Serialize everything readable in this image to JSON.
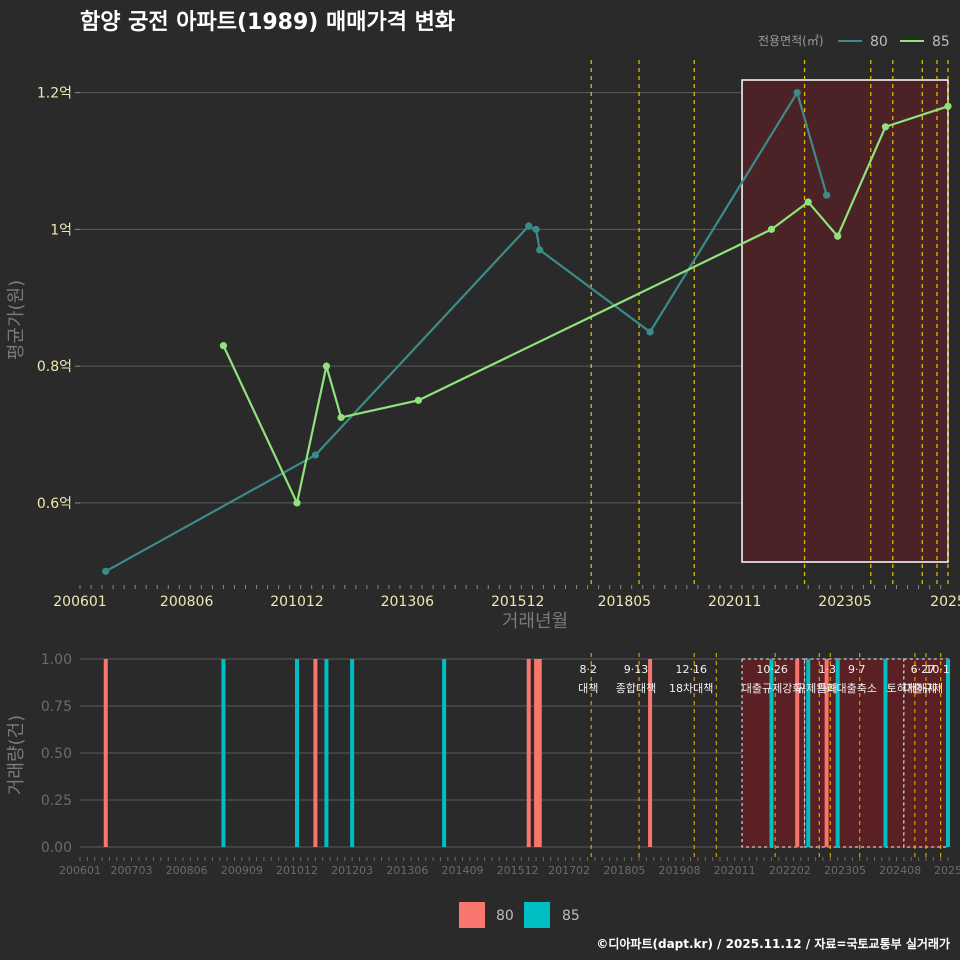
{
  "chart_data": [
    {
      "type": "line",
      "title": "함양 궁전 아파트(1989) 매매가격 변화",
      "xlabel": "거래년월",
      "ylabel": "평균가(원)",
      "ylim_eok": [
        0.48,
        1.255
      ],
      "x_range": [
        "2006-01",
        "2025-09"
      ],
      "x_tick_labels": [
        "200601",
        "200806",
        "201012",
        "201306",
        "201512",
        "201805",
        "202011",
        "202305",
        "2025"
      ],
      "x_tick_values": [
        "2006-01",
        "2008-06",
        "2010-12",
        "2013-06",
        "2015-12",
        "2018-05",
        "2020-11",
        "2023-05",
        "2025-09"
      ],
      "y_tick_labels": [
        "0.6억",
        "0.8억",
        "1억",
        "1.2억"
      ],
      "y_tick_values": [
        0.6,
        0.8,
        1.0,
        1.2
      ],
      "legend_title": "전용면적(㎡)",
      "highlight_period": [
        "2021-01",
        "2025-09"
      ],
      "policy_lines": [
        "2017-08",
        "2018-09",
        "2019-12",
        "2022-06",
        "2023-12",
        "2024-06",
        "2025-02",
        "2025-06",
        "2025-09"
      ],
      "series": [
        {
          "name": "80",
          "color": "#3b8c89",
          "points": [
            {
              "x": "2006-08",
              "y": 0.5
            },
            {
              "x": "2011-05",
              "y": 0.67
            },
            {
              "x": "2016-03",
              "y": 1.005
            },
            {
              "x": "2016-05",
              "y": 1.0
            },
            {
              "x": "2016-06",
              "y": 0.97
            },
            {
              "x": "2018-12",
              "y": 0.85
            },
            {
              "x": "2022-04",
              "y": 1.2
            },
            {
              "x": "2022-12",
              "y": 1.05
            }
          ]
        },
        {
          "name": "85",
          "color": "#8fe37d",
          "points": [
            {
              "x": "2009-04",
              "y": 0.83
            },
            {
              "x": "2010-12",
              "y": 0.6
            },
            {
              "x": "2011-08",
              "y": 0.8
            },
            {
              "x": "2011-12",
              "y": 0.725
            },
            {
              "x": "2013-09",
              "y": 0.75
            },
            {
              "x": "2021-09",
              "y": 1.0
            },
            {
              "x": "2022-07",
              "y": 1.04
            },
            {
              "x": "2023-03",
              "y": 0.99
            },
            {
              "x": "2024-04",
              "y": 1.15
            },
            {
              "x": "2025-09",
              "y": 1.18
            }
          ]
        }
      ]
    },
    {
      "type": "bar",
      "ylabel": "거래량(건)",
      "ylim": [
        0,
        1.0
      ],
      "y_tick_labels": [
        "0.00",
        "0.25",
        "0.50",
        "0.75",
        "1.00"
      ],
      "y_tick_values": [
        0,
        0.25,
        0.5,
        0.75,
        1.0
      ],
      "x_tick_labels": [
        "200601",
        "200703",
        "200806",
        "200909",
        "201012",
        "201203",
        "201306",
        "201409",
        "201512",
        "201702",
        "201805",
        "201908",
        "202011",
        "202202",
        "202305",
        "202408",
        "2025"
      ],
      "x_tick_values": [
        "2006-01",
        "2007-03",
        "2008-06",
        "2009-09",
        "2010-12",
        "2012-03",
        "2013-06",
        "2014-09",
        "2015-12",
        "2017-02",
        "2018-05",
        "2019-08",
        "2020-11",
        "2022-02",
        "2023-05",
        "2024-08",
        "2025-09"
      ],
      "highlight_periods": [
        [
          "2021-01",
          "2022-06"
        ],
        [
          "2022-06",
          "2023-03"
        ],
        [
          "2023-03",
          "2024-09"
        ],
        [
          "2024-09",
          "2025-09"
        ]
      ],
      "series": [
        {
          "name": "80",
          "color": "#f8766d",
          "bars": [
            {
              "x": "2006-08",
              "y": 1
            },
            {
              "x": "2011-05",
              "y": 1
            },
            {
              "x": "2016-03",
              "y": 1
            },
            {
              "x": "2016-05",
              "y": 1
            },
            {
              "x": "2016-06",
              "y": 1
            },
            {
              "x": "2018-12",
              "y": 1
            },
            {
              "x": "2022-04",
              "y": 1
            },
            {
              "x": "2022-12",
              "y": 1
            }
          ]
        },
        {
          "name": "85",
          "color": "#00bfc4",
          "bars": [
            {
              "x": "2009-04",
              "y": 1
            },
            {
              "x": "2010-12",
              "y": 1
            },
            {
              "x": "2011-08",
              "y": 1
            },
            {
              "x": "2012-03",
              "y": 1
            },
            {
              "x": "2014-04",
              "y": 1
            },
            {
              "x": "2021-09",
              "y": 1
            },
            {
              "x": "2022-07",
              "y": 1
            },
            {
              "x": "2023-03",
              "y": 1
            },
            {
              "x": "2024-04",
              "y": 1
            },
            {
              "x": "2025-09",
              "y": 1
            }
          ]
        }
      ],
      "policies": [
        {
          "x": "2017-08",
          "date": "8·2",
          "name": "대책"
        },
        {
          "x": "2018-09",
          "date": "9·13",
          "name": "종합대책"
        },
        {
          "x": "2019-12",
          "date": "12·16",
          "name": "18차대책"
        },
        {
          "x": "2020-06",
          "date": "",
          "name": ""
        },
        {
          "x": "2021-10",
          "date": "10·26",
          "name": "대출규제강화"
        },
        {
          "x": "2022-10",
          "date": "",
          "name": "규제완화"
        },
        {
          "x": "2023-01",
          "date": "1·3",
          "name": "특례"
        },
        {
          "x": "2023-09",
          "date": "9·7",
          "name": "대출축소"
        },
        {
          "x": "2024-12",
          "date": "",
          "name": "토허제해제"
        },
        {
          "x": "2025-03",
          "date": "6·27",
          "name": "대출규제"
        },
        {
          "x": "2025-07",
          "date": "10·1",
          "name": ""
        }
      ]
    }
  ],
  "footer": "©디아파트(dapt.kr) / 2025.11.12 / 자료=국토교통부 실거래가"
}
